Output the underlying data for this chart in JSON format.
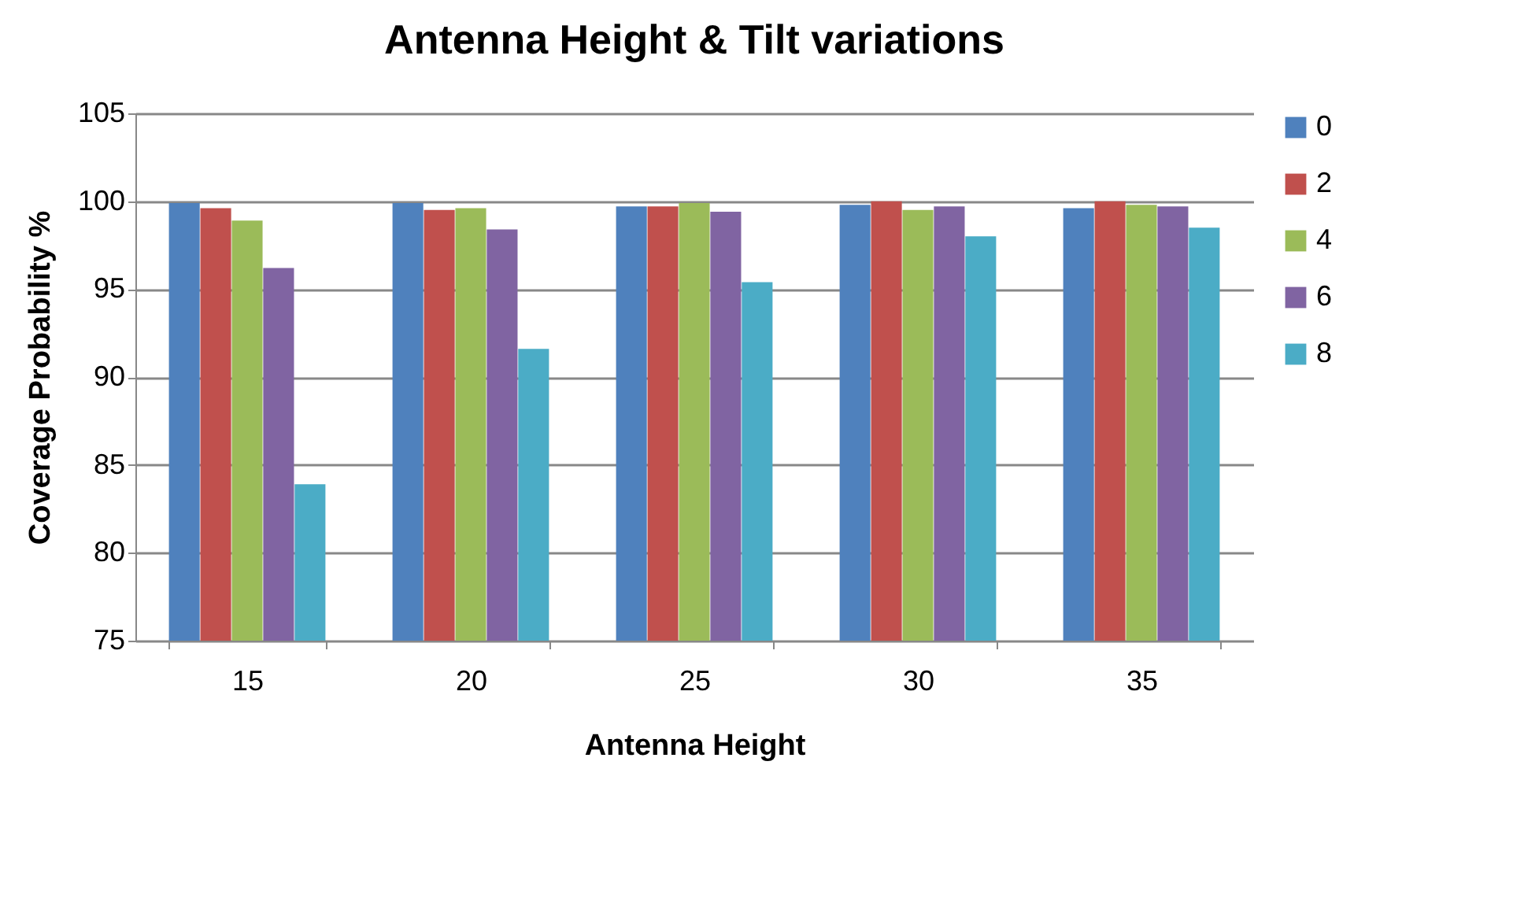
{
  "chart_data": {
    "type": "bar",
    "title": "Antenna Height & Tilt variations",
    "xlabel": "Antenna Height",
    "ylabel": "Coverage Probability %",
    "categories": [
      "15",
      "20",
      "25",
      "30",
      "35"
    ],
    "series": [
      {
        "name": "0",
        "color": "#4f81bd",
        "values": [
          99.9,
          99.9,
          99.7,
          99.8,
          99.6
        ]
      },
      {
        "name": "2",
        "color": "#c0504d",
        "values": [
          99.6,
          99.5,
          99.7,
          100,
          100
        ]
      },
      {
        "name": "4",
        "color": "#9bbb59",
        "values": [
          98.9,
          99.6,
          99.9,
          99.5,
          99.8
        ]
      },
      {
        "name": "6",
        "color": "#8064a2",
        "values": [
          96.2,
          98.4,
          99.4,
          99.7,
          99.7
        ]
      },
      {
        "name": "8",
        "color": "#4bacc6",
        "values": [
          83.9,
          91.6,
          95.4,
          98.0,
          98.5
        ]
      }
    ],
    "ylim": [
      75,
      105
    ],
    "yticks": [
      75,
      80,
      85,
      90,
      95,
      100,
      105
    ],
    "grid": "y",
    "legend": "right"
  }
}
